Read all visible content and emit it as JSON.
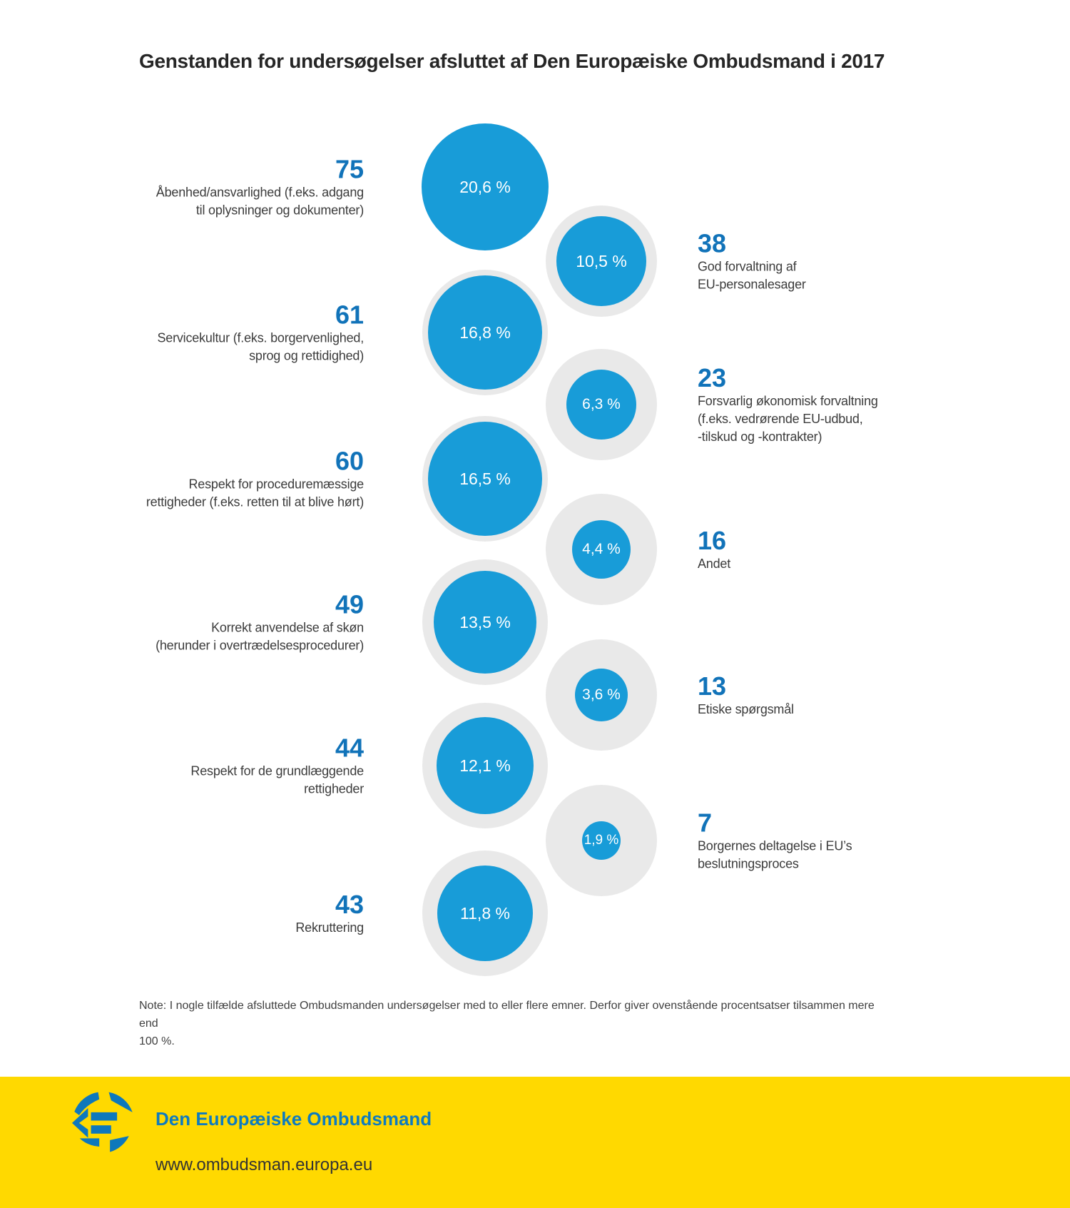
{
  "title": "Genstanden for undersøgelser afsluttet af Den Europæiske Ombudsmand i 2017",
  "chart_data": {
    "type": "bubble",
    "unit_count": "undersøgelser",
    "unit_pct": "%",
    "items": [
      {
        "side": "left",
        "count": 75,
        "pct": 20.6,
        "pct_label": "20,6 %",
        "label_lines": [
          "Åbenhed/ansvarlighed (f.eks. adgang",
          "til oplysninger og dokumenter)"
        ]
      },
      {
        "side": "right",
        "count": 38,
        "pct": 10.5,
        "pct_label": "10,5 %",
        "label_lines": [
          "God forvaltning af",
          "EU-personalesager"
        ]
      },
      {
        "side": "left",
        "count": 61,
        "pct": 16.8,
        "pct_label": "16,8 %",
        "label_lines": [
          "Servicekultur (f.eks. borgervenlighed,",
          "sprog og rettidighed)"
        ]
      },
      {
        "side": "right",
        "count": 23,
        "pct": 6.3,
        "pct_label": "6,3 %",
        "label_lines": [
          "Forsvarlig økonomisk forvaltning",
          "(f.eks. vedrørende EU-udbud,",
          "-tilskud og -kontrakter)"
        ]
      },
      {
        "side": "left",
        "count": 60,
        "pct": 16.5,
        "pct_label": "16,5 %",
        "label_lines": [
          "Respekt for proceduremæssige",
          "rettigheder (f.eks. retten til at blive hørt)"
        ]
      },
      {
        "side": "right",
        "count": 16,
        "pct": 4.4,
        "pct_label": "4,4 %",
        "label_lines": [
          "Andet"
        ]
      },
      {
        "side": "left",
        "count": 49,
        "pct": 13.5,
        "pct_label": "13,5 %",
        "label_lines": [
          "Korrekt anvendelse af skøn",
          "(herunder i overtrædelsesprocedurer)"
        ]
      },
      {
        "side": "right",
        "count": 13,
        "pct": 3.6,
        "pct_label": "3,6 %",
        "label_lines": [
          "Etiske spørgsmål"
        ]
      },
      {
        "side": "left",
        "count": 44,
        "pct": 12.1,
        "pct_label": "12,1 %",
        "label_lines": [
          "Respekt for de grundlæggende",
          "rettigheder"
        ]
      },
      {
        "side": "right",
        "count": 7,
        "pct": 1.9,
        "pct_label": "1,9 %",
        "label_lines": [
          "Borgernes deltagelse i EU’s",
          "beslutningsproces"
        ]
      },
      {
        "side": "left",
        "count": 43,
        "pct": 11.8,
        "pct_label": "11,8 %",
        "label_lines": [
          "Rekruttering"
        ]
      }
    ]
  },
  "note": "Note: I nogle tilfælde afsluttede Ombudsmanden undersøgelser med to eller flere emner. Derfor giver ovenstående procentsatser tilsammen mere end\n100 %.",
  "footer": {
    "org": "Den Europæiske Ombudsmand",
    "url": "www.ombudsman.europa.eu"
  },
  "colors": {
    "bubble_blue": "#189cd8",
    "plate_gray": "#e9e9e9",
    "number_blue": "#1173b9",
    "text_dark": "#3c3c3c",
    "footer_yellow": "#ffd900",
    "logo_blue": "#0e78bc"
  }
}
